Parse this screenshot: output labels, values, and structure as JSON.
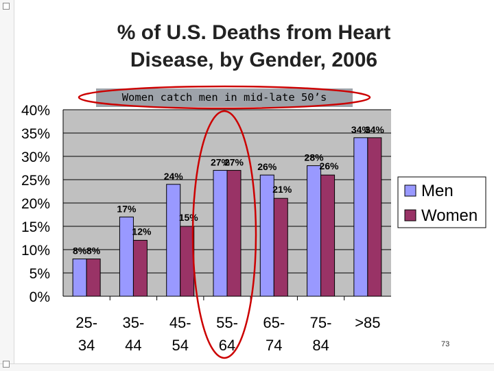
{
  "slide": {
    "title_line1": "% of U.S. Deaths from Heart",
    "title_line2": "Disease, by Gender, 2006",
    "callout": "Women catch men in mid-late 50’s",
    "page_number": "73"
  },
  "colors": {
    "men": "#9999ff",
    "women": "#993366",
    "plot_bg": "#c0c0c0",
    "highlight": "#cc0000"
  },
  "chart_data": {
    "type": "bar",
    "title": "% of U.S. Deaths from Heart Disease, by Gender, 2006",
    "categories": [
      [
        "25-",
        "34"
      ],
      [
        "35-",
        "44"
      ],
      [
        "45-",
        "54"
      ],
      [
        "55-",
        "64"
      ],
      [
        "65-",
        "74"
      ],
      [
        "75-",
        "84"
      ],
      [
        ">85",
        ""
      ]
    ],
    "series": [
      {
        "name": "Men",
        "values": [
          8,
          17,
          24,
          27,
          26,
          28,
          34
        ],
        "labels": [
          "8%",
          "17%",
          "24%",
          "27%",
          "26%",
          "28%",
          "34%"
        ]
      },
      {
        "name": "Women",
        "values": [
          8,
          12,
          15,
          27,
          21,
          26,
          34
        ],
        "labels": [
          "8%",
          "12%",
          "15%",
          "27%",
          "21%",
          "26%",
          "34%"
        ]
      }
    ],
    "ylim": [
      0,
      40
    ],
    "yticks": [
      "0%",
      "5%",
      "10%",
      "15%",
      "20%",
      "25%",
      "30%",
      "35%",
      "40%"
    ],
    "grid": true,
    "legend": "right",
    "highlighted_category": "55-64",
    "xlabel": "",
    "ylabel": ""
  }
}
